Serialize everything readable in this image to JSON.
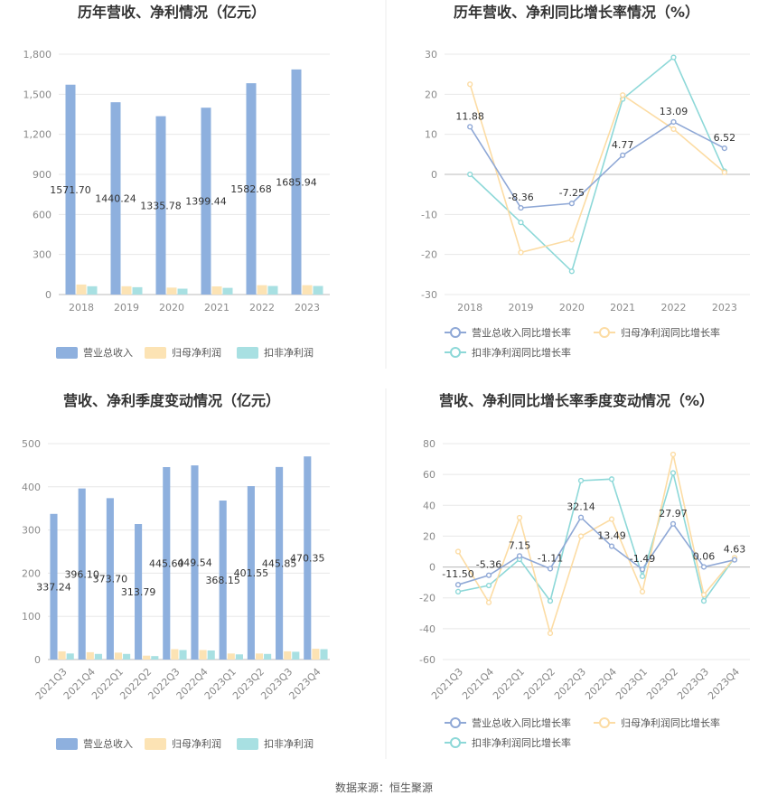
{
  "source": "数据来源：恒生聚源",
  "colors": {
    "revenue": "#8eb0de",
    "net_profit": "#fce3b4",
    "deducted_profit": "#a8e0e2",
    "revenue_line": "#8fa8d6",
    "net_line": "#fcdca4",
    "deducted_line": "#8dd8d8",
    "grid": "#e8e8e8",
    "axis": "#bbbbbb"
  },
  "chart_data": [
    {
      "id": "annual-bar",
      "type": "bar",
      "title": "历年营收、净利情况（亿元）",
      "categories": [
        "2018",
        "2019",
        "2020",
        "2021",
        "2022",
        "2023"
      ],
      "ylim": [
        0,
        1800
      ],
      "yticks": [
        0,
        300,
        600,
        900,
        1200,
        1500,
        1800
      ],
      "ytick_labels": [
        "0",
        "300",
        "600",
        "900",
        "1,200",
        "1,500",
        "1,800"
      ],
      "series": [
        {
          "name": "营业总收入",
          "values": [
            1571.7,
            1440.24,
            1335.78,
            1399.44,
            1582.68,
            1685.94
          ],
          "labels": [
            "1571.70",
            "1440.24",
            "1335.78",
            "1399.44",
            "1582.68",
            "1685.94"
          ]
        },
        {
          "name": "归母净利润",
          "values": [
            75,
            62,
            52,
            61,
            70,
            70
          ]
        },
        {
          "name": "扣非净利润",
          "values": [
            62,
            55,
            44,
            50,
            64,
            64
          ]
        }
      ],
      "legend_position": "bottom"
    },
    {
      "id": "annual-growth",
      "type": "line",
      "title": "历年营收、净利同比增长率情况（%）",
      "categories": [
        "2018",
        "2019",
        "2020",
        "2021",
        "2022",
        "2023"
      ],
      "ylim": [
        -30,
        30
      ],
      "yticks": [
        -30,
        -20,
        -10,
        0,
        10,
        20,
        30
      ],
      "ytick_labels": [
        "-30",
        "-20",
        "-10",
        "0",
        "10",
        "20",
        "30"
      ],
      "series": [
        {
          "name": "营业总收入同比增长率",
          "values": [
            11.88,
            -8.36,
            -7.25,
            4.77,
            13.09,
            6.52
          ],
          "labels": [
            "11.88",
            "-8.36",
            "-7.25",
            "4.77",
            "13.09",
            "6.52"
          ]
        },
        {
          "name": "归母净利润同比增长率",
          "values": [
            22.5,
            -19.5,
            -16.3,
            19.8,
            11.3,
            0.5
          ]
        },
        {
          "name": "扣非净利润同比增长率",
          "values": [
            0,
            -12.0,
            -24.2,
            18.8,
            29.2,
            0.8
          ]
        }
      ],
      "legend_position": "bottom"
    },
    {
      "id": "quarterly-bar",
      "type": "bar",
      "title": "营收、净利季度变动情况（亿元）",
      "categories": [
        "2021Q3",
        "2021Q4",
        "2022Q1",
        "2022Q2",
        "2022Q3",
        "2022Q4",
        "2023Q1",
        "2023Q2",
        "2023Q3",
        "2023Q4"
      ],
      "ylim": [
        0,
        500
      ],
      "yticks": [
        0,
        100,
        200,
        300,
        400,
        500
      ],
      "ytick_labels": [
        "0",
        "100",
        "200",
        "300",
        "400",
        "500"
      ],
      "series": [
        {
          "name": "营业总收入",
          "values": [
            337.24,
            396.1,
            373.7,
            313.79,
            445.6,
            449.54,
            368.15,
            401.55,
            445.85,
            470.35
          ],
          "labels": [
            "337.24",
            "396.10",
            "373.70",
            "313.79",
            "445.60",
            "449.54",
            "368.15",
            "401.55",
            "445.85",
            "470.35"
          ]
        },
        {
          "name": "归母净利润",
          "values": [
            19,
            17,
            16,
            9,
            24,
            22,
            14,
            14,
            19,
            25
          ]
        },
        {
          "name": "扣非净利润",
          "values": [
            14,
            13,
            13,
            8,
            22,
            21,
            12,
            13,
            18,
            24
          ]
        }
      ],
      "legend_position": "bottom"
    },
    {
      "id": "quarterly-growth",
      "type": "line",
      "title": "营收、净利同比增长率季度变动情况（%）",
      "categories": [
        "2021Q3",
        "2021Q4",
        "2022Q1",
        "2022Q2",
        "2022Q3",
        "2022Q4",
        "2023Q1",
        "2023Q2",
        "2023Q3",
        "2023Q4"
      ],
      "ylim": [
        -60,
        80
      ],
      "yticks": [
        -60,
        -40,
        -20,
        0,
        20,
        40,
        60,
        80
      ],
      "ytick_labels": [
        "-60",
        "-40",
        "-20",
        "0",
        "20",
        "40",
        "60",
        "80"
      ],
      "series": [
        {
          "name": "营业总收入同比增长率",
          "values": [
            -11.5,
            -5.36,
            7.15,
            -1.11,
            32.14,
            13.49,
            -1.49,
            27.97,
            0.06,
            4.63
          ],
          "labels": [
            "-11.50",
            "-5.36",
            "7.15",
            "-1.11",
            "32.14",
            "13.49",
            "-1.49",
            "27.97",
            "0.06",
            "4.63"
          ]
        },
        {
          "name": "归母净利润同比增长率",
          "values": [
            10,
            -23,
            32,
            -43,
            20,
            31,
            -16,
            73,
            -18,
            6
          ]
        },
        {
          "name": "扣非净利润同比增长率",
          "values": [
            -16,
            -12,
            5,
            -22,
            56,
            57,
            -6,
            61,
            -22,
            6
          ]
        }
      ],
      "legend_position": "bottom"
    }
  ]
}
